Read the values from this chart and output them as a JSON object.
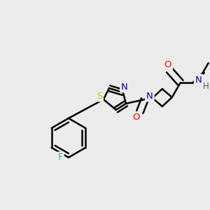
{
  "bg_color": "#ebebeb",
  "bond_color": "#000000",
  "bond_width": 1.8,
  "atom_colors": {
    "O": "#ff0000",
    "N": "#0000cc",
    "S": "#cccc00",
    "F": "#33aaaa",
    "C": "#000000",
    "H": "#555555"
  },
  "font_size": 8.5,
  "fig_width": 3.0,
  "fig_height": 3.0,
  "dpi": 100
}
